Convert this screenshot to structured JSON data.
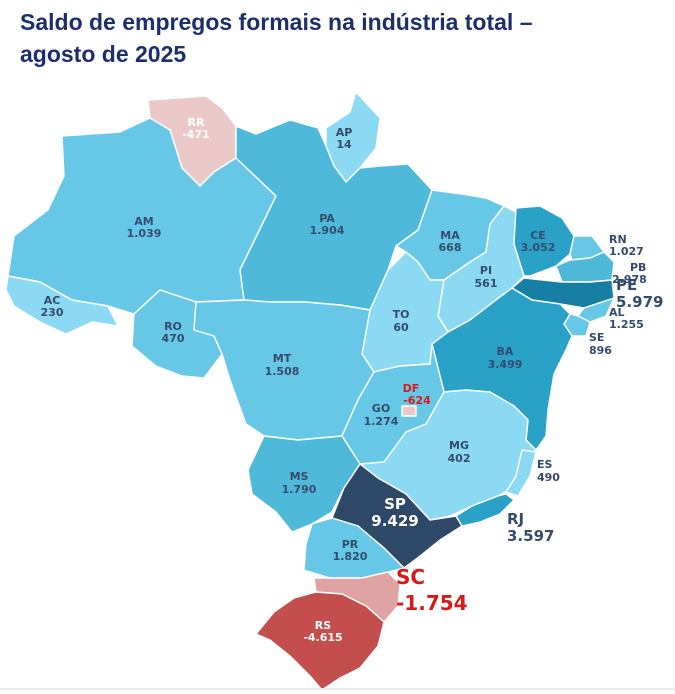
{
  "title": {
    "line1": "Saldo de empregos formais na indústria total –",
    "line2": "agosto de 2025"
  },
  "palette": {
    "negative_light": "#ecc9c9",
    "negative_mid": "#e0a3a3",
    "negative_strong": "#c44e4e",
    "positive_lightest": "#8bd9f2",
    "positive_light": "#66c8e6",
    "positive_mid": "#4fb9da",
    "positive_strong": "#2aa1c6",
    "positive_darker": "#167fa3",
    "top_value": "#2e4868",
    "label_dark": "#344b6e",
    "label_red": "#d61a1a",
    "label_white": "#ffffff"
  },
  "states": [
    {
      "uf": "RR",
      "value": "-471"
    },
    {
      "uf": "AP",
      "value": "14"
    },
    {
      "uf": "AM",
      "value": "1.039"
    },
    {
      "uf": "PA",
      "value": "1.904"
    },
    {
      "uf": "AC",
      "value": "230"
    },
    {
      "uf": "RO",
      "value": "470"
    },
    {
      "uf": "MA",
      "value": "668"
    },
    {
      "uf": "CE",
      "value": "3.052"
    },
    {
      "uf": "RN",
      "value": "1.027"
    },
    {
      "uf": "PB",
      "value": "2.978"
    },
    {
      "uf": "PE",
      "value": "5.979"
    },
    {
      "uf": "AL",
      "value": "1.255"
    },
    {
      "uf": "SE",
      "value": "896"
    },
    {
      "uf": "PI",
      "value": "561"
    },
    {
      "uf": "TO",
      "value": "60"
    },
    {
      "uf": "BA",
      "value": "3.499"
    },
    {
      "uf": "MT",
      "value": "1.508"
    },
    {
      "uf": "DF",
      "value": "-624"
    },
    {
      "uf": "GO",
      "value": "1.274"
    },
    {
      "uf": "MG",
      "value": "402"
    },
    {
      "uf": "ES",
      "value": "490"
    },
    {
      "uf": "MS",
      "value": "1.790"
    },
    {
      "uf": "SP",
      "value": "9.429"
    },
    {
      "uf": "RJ",
      "value": "3.597"
    },
    {
      "uf": "PR",
      "value": "1.820"
    },
    {
      "uf": "SC",
      "value": "-1.754"
    },
    {
      "uf": "RS",
      "value": "-4.615"
    }
  ]
}
